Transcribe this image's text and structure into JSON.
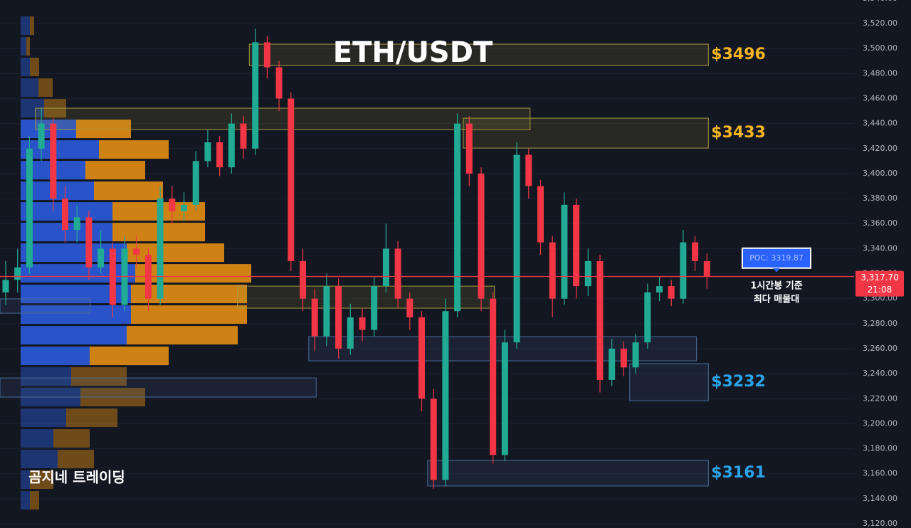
{
  "chart_data": {
    "type": "candlestick",
    "title": "ETH/USDT",
    "watermark": "곰지네 트레이딩",
    "ylim": [
      3116.6,
      3538.8
    ],
    "yticks": [
      {
        "value": 3120,
        "label": "3,120.00"
      },
      {
        "value": 3140,
        "label": "3,140.00"
      },
      {
        "value": 3160,
        "label": "3,160.00"
      },
      {
        "value": 3180,
        "label": "3,180.00"
      },
      {
        "value": 3200,
        "label": "3,200.00"
      },
      {
        "value": 3220,
        "label": "3,220.00"
      },
      {
        "value": 3240,
        "label": "3,240.00"
      },
      {
        "value": 3260,
        "label": "3,260.00"
      },
      {
        "value": 3280,
        "label": "3,280.00"
      },
      {
        "value": 3300,
        "label": "3,300.00"
      },
      {
        "value": 3320,
        "label": "3,320.00"
      },
      {
        "value": 3340,
        "label": "3,340.00"
      },
      {
        "value": 3360,
        "label": "3,360.00"
      },
      {
        "value": 3380,
        "label": "3,380.00"
      },
      {
        "value": 3400,
        "label": "3,400.00"
      },
      {
        "value": 3420,
        "label": "3,420.00"
      },
      {
        "value": 3440,
        "label": "3,440.00"
      },
      {
        "value": 3460,
        "label": "3,460.00"
      },
      {
        "value": 3480,
        "label": "3,480.00"
      },
      {
        "value": 3500,
        "label": "3,500.00"
      },
      {
        "value": 3520,
        "label": "3,520.00"
      },
      {
        "value": 3540,
        "label": "3,540.00"
      }
    ],
    "grid": true,
    "up_color": "#22ab94",
    "down_color": "#f23645",
    "open": [
      3305,
      3315,
      3325,
      3420,
      3440,
      3380,
      3355,
      3365,
      3325,
      3340,
      3295,
      3340,
      3335,
      3300,
      3380,
      3370,
      3375,
      3410,
      3425,
      3405,
      3440,
      3420,
      3505,
      3485,
      3460,
      3330,
      3300,
      3270,
      3310,
      3260,
      3285,
      3275,
      3310,
      3340,
      3300,
      3285,
      3220,
      3155,
      3290,
      3440,
      3400,
      3300,
      3175,
      3265,
      3415,
      3390,
      3345,
      3300,
      3375,
      3310,
      3330,
      3235,
      3260,
      3245,
      3265,
      3305,
      3310,
      3300,
      3345,
      3330
    ],
    "high": [
      3330,
      3340,
      3430,
      3452,
      3445,
      3390,
      3375,
      3370,
      3355,
      3345,
      3350,
      3350,
      3340,
      3390,
      3390,
      3385,
      3418,
      3435,
      3430,
      3448,
      3446,
      3516,
      3510,
      3490,
      3465,
      3340,
      3308,
      3320,
      3316,
      3296,
      3292,
      3318,
      3360,
      3346,
      3305,
      3290,
      3228,
      3300,
      3448,
      3446,
      3405,
      3305,
      3275,
      3425,
      3420,
      3395,
      3350,
      3385,
      3380,
      3340,
      3335,
      3268,
      3266,
      3272,
      3312,
      3318,
      3315,
      3355,
      3350,
      3336
    ],
    "low": [
      3295,
      3305,
      3320,
      3410,
      3370,
      3345,
      3345,
      3315,
      3320,
      3285,
      3290,
      3325,
      3290,
      3295,
      3360,
      3362,
      3370,
      3405,
      3398,
      3400,
      3412,
      3415,
      3476,
      3450,
      3322,
      3290,
      3258,
      3262,
      3252,
      3255,
      3266,
      3270,
      3305,
      3292,
      3275,
      3210,
      3148,
      3150,
      3285,
      3390,
      3290,
      3168,
      3170,
      3260,
      3380,
      3335,
      3285,
      3295,
      3300,
      3302,
      3225,
      3230,
      3238,
      3240,
      3260,
      3298,
      3294,
      3296,
      3322,
      3308
    ],
    "close": [
      3315,
      3325,
      3420,
      3440,
      3380,
      3355,
      3365,
      3325,
      3340,
      3295,
      3340,
      3335,
      3300,
      3380,
      3370,
      3375,
      3410,
      3425,
      3405,
      3440,
      3420,
      3505,
      3485,
      3460,
      3330,
      3300,
      3270,
      3310,
      3260,
      3285,
      3275,
      3310,
      3340,
      3300,
      3285,
      3220,
      3155,
      3290,
      3440,
      3400,
      3300,
      3175,
      3265,
      3415,
      3390,
      3345,
      3300,
      3375,
      3310,
      3330,
      3235,
      3260,
      3245,
      3265,
      3305,
      3310,
      3300,
      3345,
      3330,
      3318
    ],
    "volume_profile": {
      "bins": [
        3130.5,
        3147,
        3163.5,
        3180,
        3196.5,
        3213,
        3229.5,
        3246,
        3262.5,
        3279,
        3295.5,
        3312,
        3328.5,
        3345,
        3361.5,
        3378,
        3394.5,
        3411,
        3427.5,
        3444,
        3460.5,
        3477,
        3493.5,
        3510,
        3526.5
      ],
      "buy": [
        13,
        13,
        52,
        46,
        64,
        84,
        71,
        97,
        149,
        155,
        155,
        161,
        149,
        129,
        129,
        103,
        91,
        110,
        78,
        33,
        25,
        13,
        8,
        13
      ],
      "sell": [
        13,
        33,
        51,
        51,
        72,
        91,
        78,
        111,
        156,
        163,
        163,
        163,
        137,
        130,
        130,
        97,
        84,
        98,
        77,
        31,
        20,
        13,
        5,
        6
      ],
      "buy_color": "#2b5ad8",
      "sell_color": "#e08c12",
      "value_area": [
        3246,
        3444
      ]
    },
    "zones": [
      {
        "low": 3486.4,
        "high": 3503.5,
        "start": 21,
        "end": 59,
        "color": "#a89c3c",
        "label": "$3496",
        "label_color": "#f5b521"
      },
      {
        "low": 3435.2,
        "high": 3452.3,
        "start": 3,
        "end": 44,
        "color": "#a89c3c"
      },
      {
        "low": 3420.4,
        "high": 3444.3,
        "start": 39,
        "end": 59,
        "color": "#a89c3c",
        "label": "$3433",
        "label_color": "#f5b521"
      },
      {
        "low": 3288.4,
        "high": 3299.8,
        "start": 0,
        "end": 7,
        "color": "#4a6d99"
      },
      {
        "low": 3292.4,
        "high": 3310,
        "start": 20,
        "end": 41,
        "color": "#a89c3c"
      },
      {
        "low": 3250.3,
        "high": 3269.6,
        "start": 26,
        "end": 58,
        "color": "#4a6d99"
      },
      {
        "low": 3221.3,
        "high": 3236.6,
        "start": 0,
        "end": 26,
        "color": "#4a6d99"
      },
      {
        "low": 3218.4,
        "high": 3248,
        "start": 53,
        "end": 59,
        "color": "#4a6d99",
        "label": "$3232",
        "label_color": "#2aa4e8"
      },
      {
        "low": 3150.2,
        "high": 3170.6,
        "start": 36,
        "end": 59,
        "color": "#4a6d99",
        "label": "$3161",
        "label_color": "#2aa4e8"
      }
    ],
    "last_price": {
      "value": 3317.7,
      "label": "3,317.70",
      "time": "21:08",
      "color": "#f23645"
    },
    "poc": {
      "value": 3319.87,
      "label": "POC: 3319.87",
      "color": "#2962ff",
      "notes": [
        "1시간봉 기준",
        "최다 매물대"
      ]
    }
  }
}
